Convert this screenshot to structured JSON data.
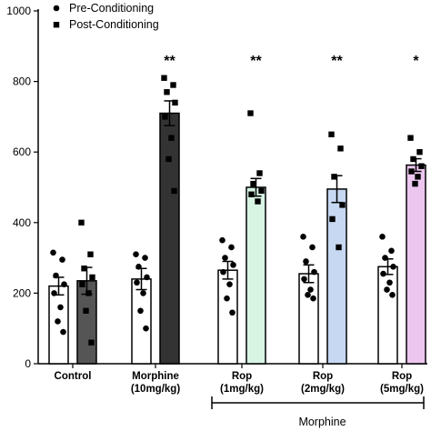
{
  "chart_data": {
    "type": "bar",
    "ylim": [
      0,
      1000
    ],
    "yticks": [
      0,
      200,
      400,
      600,
      800,
      1000
    ],
    "categories": [
      [
        "Control",
        ""
      ],
      [
        "Morphine",
        "(10mg/kg)"
      ],
      [
        "Rop",
        "(1mg/kg)"
      ],
      [
        "Rop",
        "(2mg/kg)"
      ],
      [
        "Rop",
        "(5mg/kg)"
      ]
    ],
    "series": [
      {
        "name": "Pre-Conditioning",
        "marker": "circle",
        "values": [
          220,
          240,
          265,
          255,
          275
        ],
        "errors": [
          25,
          30,
          25,
          25,
          22
        ],
        "fill_colors": [
          "#ffffff",
          "#ffffff",
          "#ffffff",
          "#ffffff",
          "#ffffff"
        ],
        "points": [
          [
            315,
            295,
            250,
            225,
            200,
            160,
            120,
            90
          ],
          [
            310,
            300,
            275,
            245,
            230,
            200,
            150,
            100
          ],
          [
            350,
            330,
            300,
            280,
            260,
            225,
            185,
            145
          ],
          [
            360,
            330,
            290,
            260,
            240,
            210,
            195,
            185
          ],
          [
            360,
            320,
            300,
            275,
            255,
            230,
            210,
            195
          ]
        ]
      },
      {
        "name": "Post-Conditioning",
        "marker": "square",
        "values": [
          235,
          710,
          500,
          495,
          563
        ],
        "errors": [
          38,
          35,
          25,
          38,
          18
        ],
        "fill_colors": [
          "#555555",
          "#333333",
          "#d8f5e4",
          "#c7d8f2",
          "#ecc6ef"
        ],
        "points": [
          [
            400,
            310,
            270,
            245,
            225,
            200,
            150,
            60
          ],
          [
            810,
            790,
            770,
            740,
            700,
            640,
            580,
            490
          ],
          [
            710,
            540,
            510,
            490,
            480,
            460
          ],
          [
            650,
            610,
            530,
            450,
            410,
            330
          ],
          [
            640,
            600,
            580,
            560,
            545,
            530,
            510
          ]
        ]
      }
    ],
    "significance": [
      "",
      "**",
      "**",
      "**",
      "*"
    ],
    "group_label": "Morphine",
    "legend_position": "top-left",
    "grid": false
  }
}
